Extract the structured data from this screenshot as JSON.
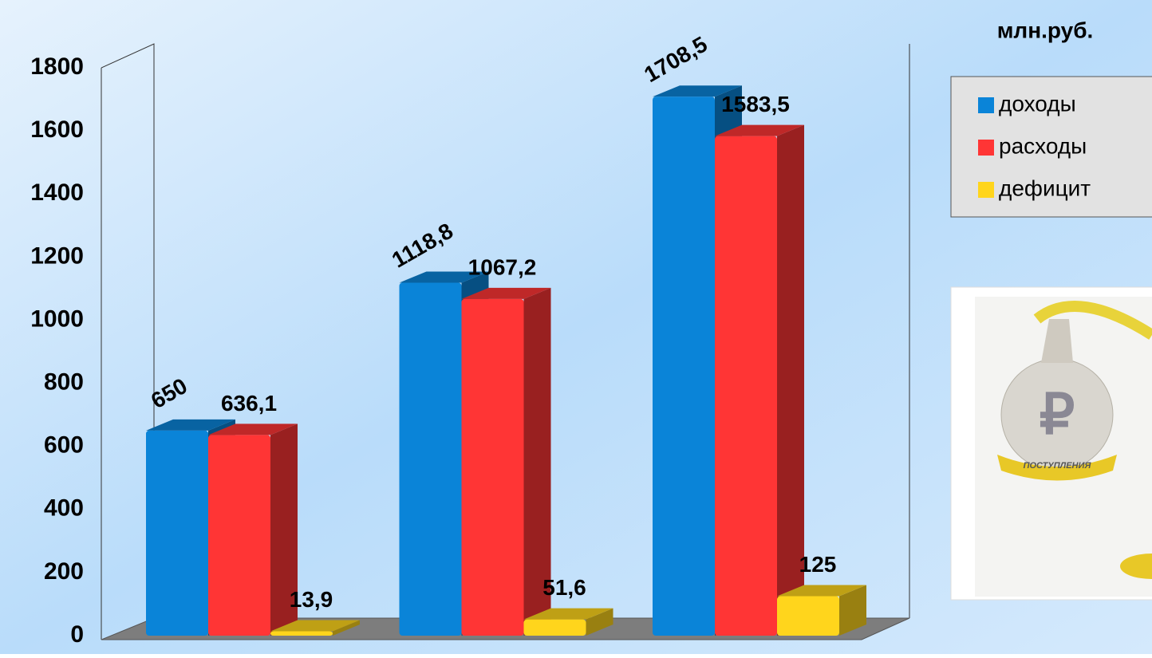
{
  "chart_data": {
    "type": "bar3d",
    "unit_label": "млн.руб.",
    "categories": [
      null,
      null,
      null
    ],
    "series": [
      {
        "name": "доходы",
        "color": "#0a84d8",
        "values": [
          650,
          1118.8,
          1708.5
        ],
        "value_labels": [
          "650",
          "1118,8",
          "1708,5"
        ]
      },
      {
        "name": "расходы",
        "color": "#ff3535",
        "values": [
          636.1,
          1067.2,
          1583.5
        ],
        "value_labels": [
          "636,1",
          "1067,2",
          "1583,5"
        ]
      },
      {
        "name": "дефицит",
        "color": "#ffd51c",
        "values": [
          13.9,
          51.6,
          125
        ],
        "value_labels": [
          "13,9",
          "51,6",
          "125"
        ]
      }
    ],
    "ylim": [
      0,
      1800
    ],
    "yticks": [
      0,
      200,
      400,
      600,
      800,
      1000,
      1200,
      1400,
      1600,
      1800
    ],
    "legend": "right",
    "image_text": "ПОСТУПЛЕНИЯ"
  }
}
